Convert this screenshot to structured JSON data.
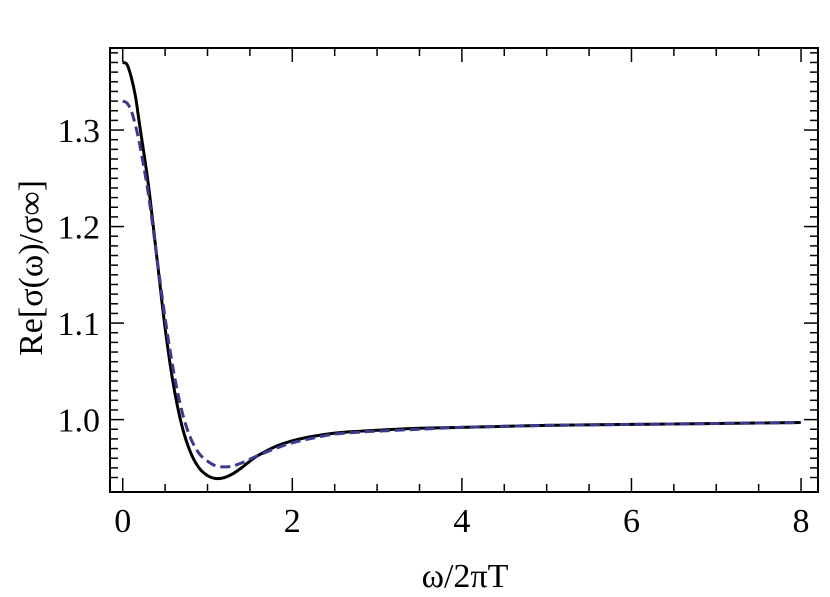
{
  "chart_data": {
    "type": "line",
    "title": "",
    "xlabel": "ω/2πT",
    "ylabel": "Re[σ(ω)/σ∞]",
    "xlim": [
      -0.15,
      8.2
    ],
    "ylim": [
      0.925,
      1.385
    ],
    "xticks": [
      0,
      2,
      4,
      6,
      8
    ],
    "xtick_labels": [
      "0",
      "2",
      "4",
      "6",
      "8"
    ],
    "yticks": [
      1.0,
      1.1,
      1.2,
      1.3
    ],
    "ytick_labels": [
      "1.0",
      "1.1",
      "1.2",
      "1.3"
    ],
    "grid": false,
    "legend": "none",
    "series": [
      {
        "style": "solid",
        "color": "#000000",
        "x": [
          0.0,
          0.05,
          0.1,
          0.15,
          0.2,
          0.3,
          0.4,
          0.5,
          0.6,
          0.7,
          0.8,
          0.9,
          1.0,
          1.1,
          1.2,
          1.3,
          1.4,
          1.5,
          1.6,
          1.8,
          2.0,
          2.2,
          2.5,
          2.8,
          3.0,
          3.5,
          4.0,
          5.0,
          6.0,
          7.0,
          8.0
        ],
        "y": [
          1.37,
          1.368,
          1.355,
          1.335,
          1.305,
          1.245,
          1.17,
          1.095,
          1.035,
          0.993,
          0.966,
          0.95,
          0.942,
          0.939,
          0.94,
          0.944,
          0.95,
          0.957,
          0.963,
          0.972,
          0.978,
          0.982,
          0.986,
          0.988,
          0.989,
          0.991,
          0.992,
          0.994,
          0.995,
          0.996,
          0.997
        ]
      },
      {
        "style": "dashed",
        "color": "#3c3a8e",
        "x": [
          0.0,
          0.05,
          0.1,
          0.15,
          0.2,
          0.3,
          0.4,
          0.5,
          0.6,
          0.7,
          0.8,
          0.9,
          1.0,
          1.1,
          1.2,
          1.3,
          1.4,
          1.5,
          1.6,
          1.8,
          2.0,
          2.2,
          2.5,
          2.8,
          3.0,
          3.5,
          4.0,
          5.0,
          6.0,
          7.0,
          8.0
        ],
        "y": [
          1.33,
          1.328,
          1.32,
          1.305,
          1.285,
          1.235,
          1.17,
          1.105,
          1.05,
          1.008,
          0.981,
          0.965,
          0.957,
          0.952,
          0.951,
          0.952,
          0.955,
          0.959,
          0.963,
          0.97,
          0.976,
          0.98,
          0.985,
          0.987,
          0.988,
          0.99,
          0.992,
          0.994,
          0.995,
          0.996,
          0.997
        ]
      }
    ]
  }
}
